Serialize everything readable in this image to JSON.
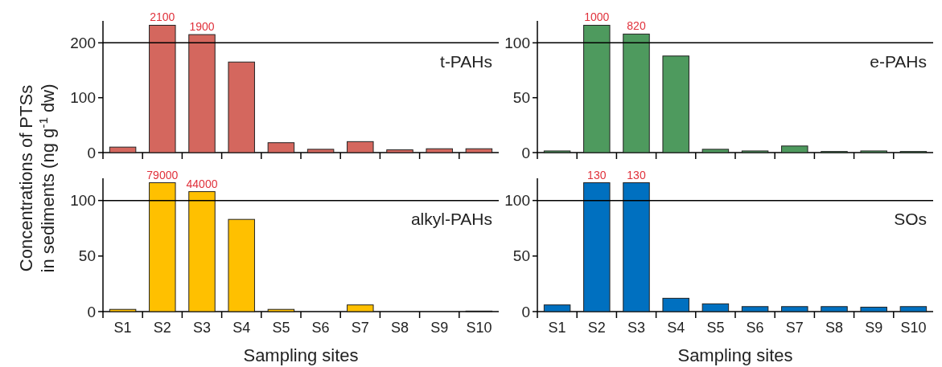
{
  "chart_data": [
    {
      "type": "bar",
      "title": "t-PAHs",
      "ylabel": "Concentrations of PTSs\nin sediments (ng g$^{-1}$ dw)",
      "categories": [
        "S1",
        "S2",
        "S3",
        "S4",
        "S5",
        "S6",
        "S7",
        "S8",
        "S9",
        "S10"
      ],
      "values": [
        10,
        232,
        215,
        165,
        18,
        6,
        20,
        5,
        7,
        7
      ],
      "color": "#d4675e",
      "ylim": [
        0,
        240
      ],
      "yticks": [
        0,
        100,
        200
      ],
      "tick_labels": "y",
      "ref_lines": [
        {
          "axis": "y",
          "value": 200,
          "color": "#000000"
        }
      ],
      "annotations": [
        {
          "text": "2100",
          "x": "S2",
          "y": 232
        },
        {
          "text": "1900",
          "x": "S3",
          "y": 215
        }
      ]
    },
    {
      "type": "bar",
      "title": "e-PAHs",
      "categories": [
        "S1",
        "S2",
        "S3",
        "S4",
        "S5",
        "S6",
        "S7",
        "S8",
        "S9",
        "S10"
      ],
      "values": [
        1.5,
        116,
        108,
        88,
        3,
        1.5,
        6,
        1,
        1.5,
        1
      ],
      "color": "#4e9a5e",
      "ylim": [
        0,
        120
      ],
      "yticks": [
        0,
        50,
        100
      ],
      "tick_labels": "y",
      "ref_lines": [
        {
          "axis": "y",
          "value": 100,
          "color": "#000000"
        }
      ],
      "annotations": [
        {
          "text": "1000",
          "x": "S2",
          "y": 116
        },
        {
          "text": "820",
          "x": "S3",
          "y": 108
        }
      ]
    },
    {
      "type": "bar",
      "title": "alkyl-PAHs",
      "xlabel": "Sampling sites",
      "categories": [
        "S1",
        "S2",
        "S3",
        "S4",
        "S5",
        "S6",
        "S7",
        "S8",
        "S9",
        "S10"
      ],
      "values": [
        2,
        116,
        108,
        83,
        2,
        0,
        6,
        0,
        0,
        0.5
      ],
      "color": "#ffc000",
      "ylim": [
        0,
        120
      ],
      "yticks": [
        0,
        50,
        100
      ],
      "ref_lines": [
        {
          "axis": "y",
          "value": 100,
          "color": "#000000"
        }
      ],
      "annotations": [
        {
          "text": "79000",
          "x": "S2",
          "y": 116
        },
        {
          "text": "44000",
          "x": "S3",
          "y": 108
        }
      ]
    },
    {
      "type": "bar",
      "title": "SOs",
      "xlabel": "Sampling sites",
      "categories": [
        "S1",
        "S2",
        "S3",
        "S4",
        "S5",
        "S6",
        "S7",
        "S8",
        "S9",
        "S10"
      ],
      "values": [
        6,
        116,
        116,
        12,
        7,
        4.5,
        4.5,
        4.5,
        4,
        4.5
      ],
      "color": "#0070c0",
      "ylim": [
        0,
        120
      ],
      "yticks": [
        0,
        50,
        100
      ],
      "ref_lines": [
        {
          "axis": "y",
          "value": 100,
          "color": "#000000"
        }
      ],
      "annotations": [
        {
          "text": "130",
          "x": "S2",
          "y": 116
        },
        {
          "text": "130",
          "x": "S3",
          "y": 116
        }
      ]
    }
  ]
}
